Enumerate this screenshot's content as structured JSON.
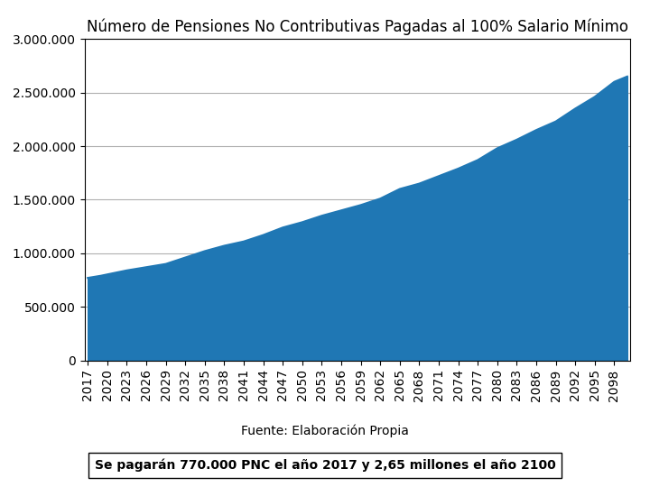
{
  "chart_data": {
    "type": "area",
    "title": "Número de Pensiones No Contributivas Pagadas al 100% Salario Mínimo",
    "annotations": [
      "Fuente: Elaboración Propia",
      "Se pagarán 770.000 PNC el año 2017 y 2,65 millones el año 2100"
    ],
    "x": [
      2017,
      2019,
      2023,
      2026,
      2029,
      2032,
      2035,
      2038,
      2041,
      2044,
      2047,
      2050,
      2053,
      2056,
      2059,
      2062,
      2065,
      2068,
      2071,
      2074,
      2077,
      2080,
      2083,
      2086,
      2089,
      2092,
      2095,
      2098,
      2100
    ],
    "values": [
      770000,
      790000,
      840000,
      870000,
      900000,
      960000,
      1020000,
      1070000,
      1110000,
      1170000,
      1240000,
      1290000,
      1350000,
      1400000,
      1450000,
      1510000,
      1600000,
      1650000,
      1720000,
      1790000,
      1870000,
      1980000,
      2060000,
      2150000,
      2230000,
      2350000,
      2460000,
      2600000,
      2650000
    ],
    "xlim": [
      2016.5,
      2100.5
    ],
    "xticks": [
      2017,
      2020,
      2023,
      2026,
      2029,
      2032,
      2035,
      2038,
      2041,
      2044,
      2047,
      2050,
      2053,
      2056,
      2059,
      2062,
      2065,
      2068,
      2071,
      2074,
      2077,
      2080,
      2083,
      2086,
      2089,
      2092,
      2095,
      2098
    ],
    "ylim": [
      0,
      3000000
    ],
    "yticks": [
      0,
      {
        "value": 500000,
        "label": "500.000"
      },
      {
        "value": 1000000,
        "label": "1.000.000"
      },
      {
        "value": 1500000,
        "label": "1.500.000"
      },
      {
        "value": 2000000,
        "label": "2.000.000"
      },
      {
        "value": 2500000,
        "label": "2.500.000"
      },
      {
        "value": 3000000,
        "label": "3.000.000"
      }
    ],
    "grid": true
  }
}
